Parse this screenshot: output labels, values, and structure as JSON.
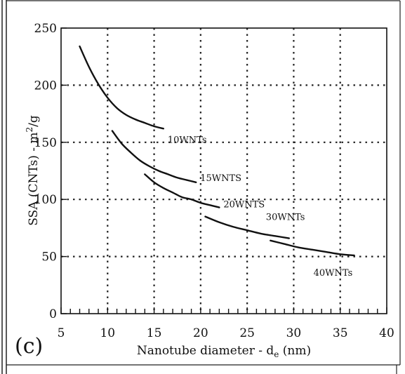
{
  "chart_data": {
    "type": "line",
    "title": "",
    "panel_label": "(c)",
    "xlabel": {
      "text": "Nanotube diameter - d",
      "subscript": "e",
      "suffix": " (nm)"
    },
    "ylabel": {
      "text": "SSA (CNTs)  -  m",
      "superscript": "2",
      "suffix": "/g"
    },
    "xlim": [
      5,
      40
    ],
    "ylim": [
      0,
      250
    ],
    "x_ticks": [
      5,
      10,
      15,
      20,
      25,
      30,
      35,
      40
    ],
    "y_ticks": [
      0,
      50,
      100,
      150,
      200,
      250
    ],
    "x_tick_labels": [
      "5",
      "10",
      "15",
      "20",
      "25",
      "30",
      "35",
      "40"
    ],
    "y_tick_labels": [
      "0",
      "50",
      "100",
      "150",
      "200",
      "250"
    ],
    "grid": "dotted",
    "series": [
      {
        "name": "10WNTs",
        "x": [
          7,
          8,
          9,
          10,
          11,
          12,
          13,
          14,
          15,
          16
        ],
        "y": [
          234,
          216,
          201,
          189,
          180,
          174,
          170,
          167,
          164,
          162
        ]
      },
      {
        "name": "15WNTS",
        "x": [
          10.5,
          11.5,
          12.5,
          13.5,
          14.5,
          15.5,
          16.5,
          17.5,
          18.5,
          19.5
        ],
        "y": [
          160,
          149,
          141,
          134,
          129,
          125,
          122,
          119,
          117,
          115
        ]
      },
      {
        "name": "20WNTS",
        "x": [
          14,
          15,
          16,
          17,
          18,
          19,
          20,
          21,
          22
        ],
        "y": [
          122,
          115,
          110,
          106,
          102,
          100,
          97,
          95,
          93
        ]
      },
      {
        "name": "30WNTs",
        "x": [
          20.5,
          22,
          23.5,
          25,
          26.5,
          28,
          29.5
        ],
        "y": [
          85,
          80,
          76,
          73,
          70,
          68,
          66
        ]
      },
      {
        "name": "40WNTs",
        "x": [
          27.5,
          29,
          30.5,
          32,
          33.5,
          35,
          36.5
        ],
        "y": [
          64,
          61,
          58,
          56,
          54,
          52,
          51
        ]
      }
    ]
  }
}
